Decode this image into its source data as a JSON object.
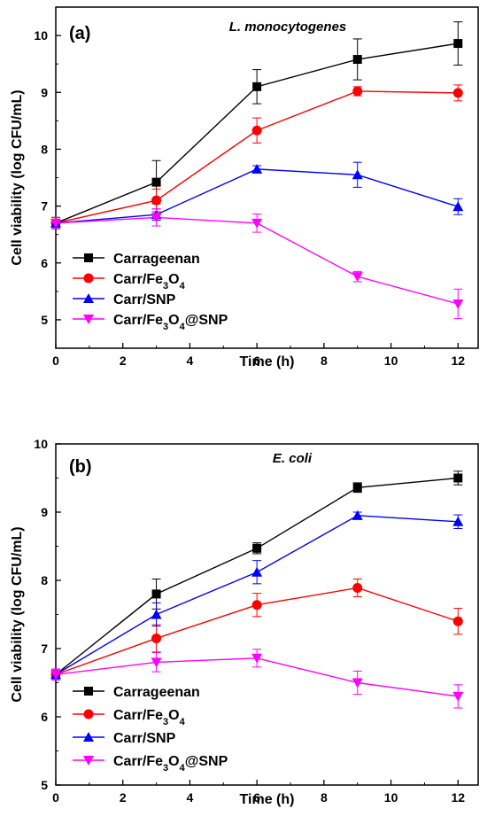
{
  "chart_data": [
    {
      "type": "line",
      "panel_label": "(a)",
      "organism": "L. monocytogenes",
      "xlabel": "Time (h)",
      "ylabel": "Cell viability (log CFU/mL)",
      "xlim": [
        0,
        12.6
      ],
      "ylim": [
        4.5,
        10.5
      ],
      "xticks": [
        0,
        2,
        4,
        6,
        8,
        10,
        12
      ],
      "yticks": [
        5,
        6,
        7,
        8,
        9,
        10
      ],
      "legend_position": "bottom-left",
      "x": [
        0,
        3,
        6,
        9,
        12
      ],
      "series": [
        {
          "name": "Carrageenan",
          "name_base": "Carrageenan",
          "name_parts": [],
          "color": "#000000",
          "marker": "square",
          "values": [
            6.7,
            7.42,
            9.1,
            9.58,
            9.86
          ],
          "errors": [
            0.1,
            0.38,
            0.3,
            0.36,
            0.38
          ]
        },
        {
          "name": "Carr/Fe3O4",
          "name_base": "Carr/Fe",
          "name_parts": [
            "3",
            "O",
            "4"
          ],
          "color": "#ff0000",
          "marker": "circle",
          "values": [
            6.7,
            7.1,
            8.33,
            9.02,
            8.99
          ],
          "errors": [
            0.1,
            0.2,
            0.22,
            0.08,
            0.14
          ]
        },
        {
          "name": "Carr/SNP",
          "name_base": "Carr/SNP",
          "name_parts": [],
          "color": "#0000ff",
          "marker": "triangle-up",
          "values": [
            6.7,
            6.85,
            7.65,
            7.55,
            6.99
          ],
          "errors": [
            0.1,
            0.1,
            0.06,
            0.22,
            0.14
          ]
        },
        {
          "name": "Carr/Fe3O4@SNP",
          "name_base": "Carr/Fe",
          "name_parts": [
            "3",
            "O",
            "4",
            "@SNP"
          ],
          "color": "#ff00ff",
          "marker": "triangle-down",
          "values": [
            6.7,
            6.8,
            6.7,
            5.76,
            5.28
          ],
          "errors": [
            0.1,
            0.15,
            0.16,
            0.09,
            0.26
          ]
        }
      ]
    },
    {
      "type": "line",
      "panel_label": "(b)",
      "organism": "E. coli",
      "xlabel": "Time (h)",
      "ylabel": "Cell viability (log CFU/mL)",
      "xlim": [
        0,
        12.6
      ],
      "ylim": [
        5,
        10
      ],
      "xticks": [
        0,
        2,
        4,
        6,
        8,
        10,
        12
      ],
      "yticks": [
        5,
        6,
        7,
        8,
        9,
        10
      ],
      "legend_position": "bottom-left",
      "x": [
        0,
        3,
        6,
        9,
        12
      ],
      "series": [
        {
          "name": "Carrageenan",
          "name_base": "Carrageenan",
          "name_parts": [],
          "color": "#000000",
          "marker": "square",
          "values": [
            6.62,
            7.8,
            8.47,
            9.36,
            9.5
          ],
          "errors": [
            0.08,
            0.22,
            0.08,
            0.07,
            0.1
          ]
        },
        {
          "name": "Carr/Fe3O4",
          "name_base": "Carr/Fe",
          "name_parts": [
            "3",
            "O",
            "4"
          ],
          "color": "#ff0000",
          "marker": "circle",
          "values": [
            6.62,
            7.15,
            7.64,
            7.89,
            7.4
          ],
          "errors": [
            0.08,
            0.2,
            0.17,
            0.13,
            0.19
          ]
        },
        {
          "name": "Carr/SNP",
          "name_base": "Carr/SNP",
          "name_parts": [],
          "color": "#0000ff",
          "marker": "triangle-up",
          "values": [
            6.62,
            7.5,
            8.12,
            8.95,
            8.86
          ],
          "errors": [
            0.08,
            0.17,
            0.17,
            0.05,
            0.1
          ]
        },
        {
          "name": "Carr/Fe3O4@SNP",
          "name_base": "Carr/Fe",
          "name_parts": [
            "3",
            "O",
            "4",
            "@SNP"
          ],
          "color": "#ff00ff",
          "marker": "triangle-down",
          "values": [
            6.62,
            6.8,
            6.86,
            6.5,
            6.3
          ],
          "errors": [
            0.08,
            0.14,
            0.13,
            0.17,
            0.17
          ]
        }
      ]
    }
  ]
}
